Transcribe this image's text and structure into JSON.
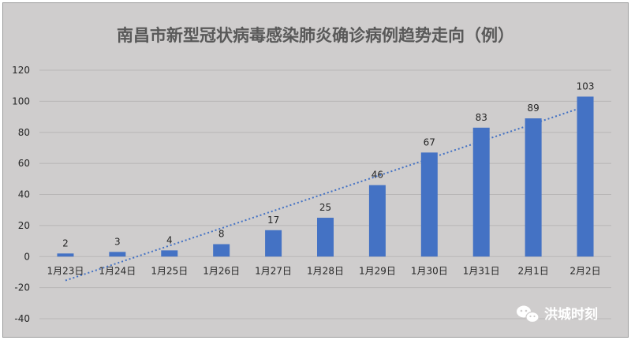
{
  "chart_data": {
    "type": "bar",
    "title": "南昌市新型冠状病毒感染肺炎确诊病例趋势走向（例）",
    "categories": [
      "1月23日",
      "1月24日",
      "1月25日",
      "1月26日",
      "1月27日",
      "1月28日",
      "1月29日",
      "1月30日",
      "1月31日",
      "2月1日",
      "2月2日"
    ],
    "values": [
      2,
      3,
      4,
      8,
      17,
      25,
      46,
      67,
      83,
      89,
      103
    ],
    "ylim": [
      -40,
      120
    ],
    "yticks": [
      -40,
      -20,
      0,
      20,
      40,
      60,
      80,
      100,
      120
    ],
    "grid": true,
    "trendline": {
      "type": "linear",
      "style": "dotted"
    },
    "colors": {
      "bar": "#4472c4",
      "trend": "#4472c4",
      "grid": "#b8b6b6",
      "background": "#cfcdcd"
    }
  },
  "watermark": {
    "text": "洪城时刻",
    "icon": "wechat-icon"
  }
}
